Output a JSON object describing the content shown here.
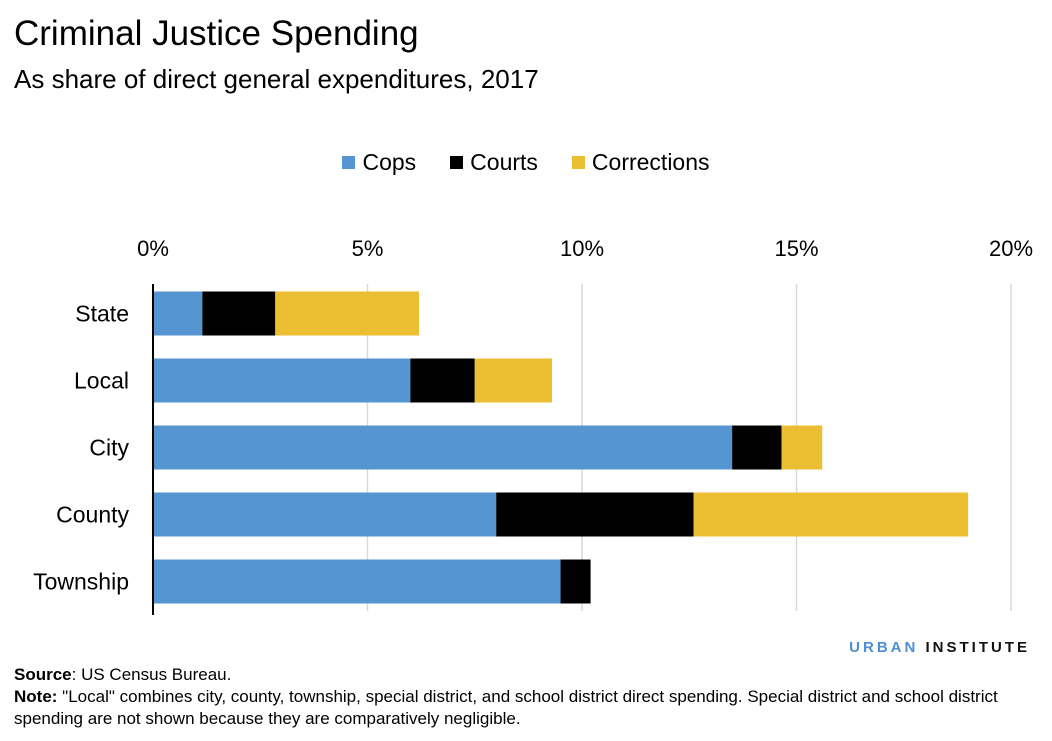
{
  "header": {
    "title": "Criminal Justice Spending",
    "subtitle": "As share of direct general expenditures, 2017"
  },
  "chart_data": {
    "type": "bar",
    "orientation": "horizontal",
    "stacked": true,
    "title": "Criminal Justice Spending",
    "subtitle": "As share of direct general expenditures, 2017",
    "categories": [
      "State",
      "Local",
      "City",
      "County",
      "Township"
    ],
    "series": [
      {
        "name": "Cops",
        "color": "#5596d2",
        "values": [
          1.15,
          6.0,
          13.5,
          8.0,
          9.5
        ]
      },
      {
        "name": "Courts",
        "color": "#000000",
        "values": [
          1.7,
          1.5,
          1.15,
          4.6,
          0.7
        ]
      },
      {
        "name": "Corrections",
        "color": "#ecbe31",
        "values": [
          3.35,
          1.8,
          0.95,
          6.4,
          0
        ]
      }
    ],
    "xlim": [
      0,
      20
    ],
    "xticks": [
      0,
      5,
      10,
      15,
      20
    ],
    "xtick_labels": [
      "0%",
      "5%",
      "10%",
      "15%",
      "20%"
    ],
    "xaxis_position": "top",
    "grid": true,
    "legend_position": "top-center"
  },
  "footer": {
    "logo_part1": "URBAN",
    "logo_part2": "INSTITUTE",
    "source_label": "Source",
    "source_text": ": US Census Bureau.",
    "note_label": "Note:",
    "note_text": " \"Local\" combines city, county, township, special district, and school district direct spending. Special district and school district spending are not shown because they are comparatively negligible."
  }
}
